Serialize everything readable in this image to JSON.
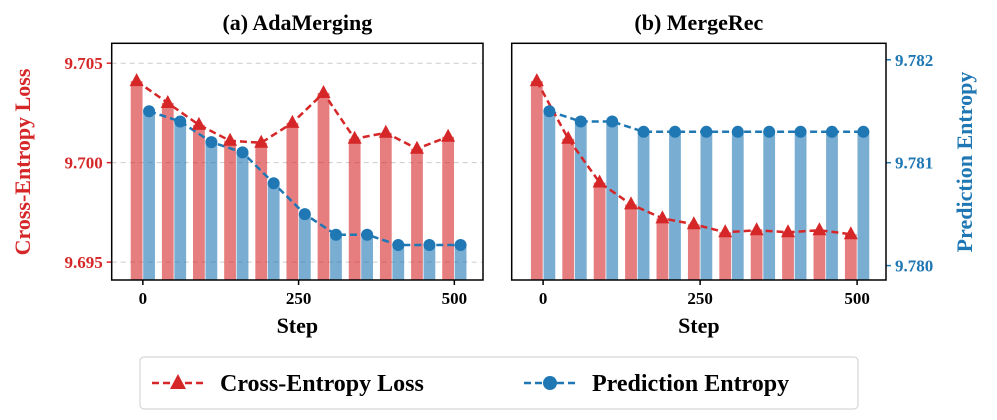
{
  "colors": {
    "loss": "#d62728",
    "entropy": "#1f77b4",
    "grid": "#cccccc"
  },
  "legend": {
    "placement": "bottom-center",
    "items": [
      "Cross-Entropy Loss",
      "Prediction Entropy"
    ]
  },
  "chart_data": [
    {
      "type": "bar+line",
      "title": "(a) AdaMerging",
      "xlabel": "Step",
      "ylabel": "Cross-Entropy Loss",
      "x": [
        0,
        50,
        100,
        150,
        200,
        250,
        300,
        350,
        400,
        450,
        500
      ],
      "xticks": [
        "0",
        "250",
        "500"
      ],
      "xlim": [
        -50,
        546
      ],
      "ylim": [
        9.6941,
        9.706
      ],
      "yticks": [
        "9.695",
        "9.700",
        "9.705"
      ],
      "y2lim": [
        9.77986,
        9.78216
      ],
      "grid": true,
      "series": [
        {
          "name": "Cross-Entropy Loss",
          "axis": "left",
          "marker": "triangle",
          "values": [
            9.7041,
            9.703,
            9.7019,
            9.7011,
            9.701,
            9.702,
            9.7035,
            9.7012,
            9.7015,
            9.7007,
            9.7013
          ]
        },
        {
          "name": "Prediction Entropy",
          "axis": "right",
          "marker": "circle",
          "values": [
            9.7815,
            9.7814,
            9.7812,
            9.7811,
            9.7808,
            9.7805,
            9.7803,
            9.7803,
            9.7802,
            9.7802,
            9.7802
          ]
        }
      ]
    },
    {
      "type": "bar+line",
      "title": "(b) MergeRec",
      "xlabel": "Step",
      "ylabel": "Prediction Entropy",
      "x": [
        0,
        50,
        100,
        150,
        200,
        250,
        300,
        350,
        400,
        450,
        500
      ],
      "xticks": [
        "0",
        "250",
        "500"
      ],
      "xlim": [
        -50,
        546
      ],
      "ylim": [
        9.6941,
        9.706
      ],
      "y2lim": [
        9.77986,
        9.78216
      ],
      "y2ticks": [
        "9.780",
        "9.781",
        "9.782"
      ],
      "grid": false,
      "series": [
        {
          "name": "Cross-Entropy Loss",
          "axis": "left",
          "marker": "triangle",
          "values": [
            9.7041,
            9.7012,
            9.699,
            9.6979,
            9.6972,
            9.6969,
            9.6965,
            9.6966,
            9.6965,
            9.6966,
            9.6964
          ]
        },
        {
          "name": "Prediction Entropy",
          "axis": "right",
          "marker": "circle",
          "values": [
            9.7815,
            9.7814,
            9.7814,
            9.7813,
            9.7813,
            9.7813,
            9.7813,
            9.7813,
            9.7813,
            9.7813,
            9.7813
          ]
        }
      ]
    }
  ]
}
